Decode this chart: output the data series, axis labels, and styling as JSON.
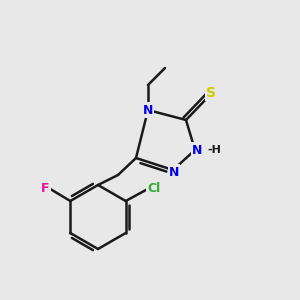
{
  "bg_color": "#e8e8e8",
  "bond_color": "#1a1a1a",
  "bond_lw": 1.8,
  "atom_colors": {
    "N": "#0000ee",
    "S": "#cccc00",
    "F": "#ee1199",
    "Cl": "#33aa33",
    "C": "#1a1a1a"
  },
  "font_size": 9,
  "font_size_small": 8
}
